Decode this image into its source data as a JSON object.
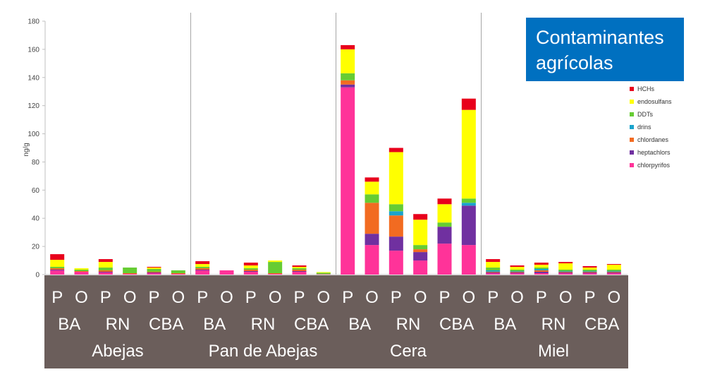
{
  "chart_data": {
    "type": "bar",
    "stacked": true,
    "title": "Contaminantes agrícolas",
    "ylabel": "ng/g",
    "ylim": [
      0,
      180
    ],
    "yticks": [
      0,
      20,
      40,
      60,
      80,
      100,
      120,
      140,
      160,
      180
    ],
    "groups": [
      {
        "name": "Abejas",
        "sites": [
          "BA",
          "RN",
          "CBA"
        ]
      },
      {
        "name": "Pan de Abejas",
        "sites": [
          "BA",
          "RN",
          "CBA"
        ]
      },
      {
        "name": "Cera",
        "sites": [
          "BA",
          "RN",
          "CBA"
        ]
      },
      {
        "name": "Miel",
        "sites": [
          "BA",
          "RN",
          "CBA"
        ]
      }
    ],
    "sublabels": [
      "P",
      "O"
    ],
    "categories": [
      "Abejas BA P",
      "Abejas BA O",
      "Abejas RN P",
      "Abejas RN O",
      "Abejas CBA P",
      "Abejas CBA O",
      "Pan de Abejas BA P",
      "Pan de Abejas BA O",
      "Pan de Abejas RN P",
      "Pan de Abejas RN O",
      "Pan de Abejas CBA P",
      "Pan de Abejas CBA O",
      "Cera BA P",
      "Cera BA O",
      "Cera RN P",
      "Cera RN O",
      "Cera CBA P",
      "Cera CBA O",
      "Miel BA P",
      "Miel BA O",
      "Miel RN P",
      "Miel RN O",
      "Miel CBA P",
      "Miel CBA O"
    ],
    "series": [
      {
        "name": "chlorpyrifos",
        "color": "#ff3399",
        "values": [
          3,
          2,
          1.5,
          0.5,
          1,
          0.5,
          3,
          3,
          2,
          0.5,
          2,
          0.3,
          133,
          21,
          17,
          10,
          22,
          21,
          1,
          1,
          1,
          1,
          1,
          1
        ]
      },
      {
        "name": "heptachlors",
        "color": "#7030a0",
        "values": [
          0.5,
          0,
          0.5,
          0,
          0.5,
          0,
          0.5,
          0,
          0.5,
          0,
          0.5,
          0,
          2,
          8,
          10,
          6,
          12,
          28,
          0.5,
          0.5,
          1,
          0.5,
          0.5,
          0.5
        ]
      },
      {
        "name": "chlordanes",
        "color": "#f26b21",
        "values": [
          1,
          0.5,
          1,
          0.5,
          0.5,
          0.5,
          1,
          0,
          1,
          0.5,
          1,
          0,
          3,
          22,
          15,
          2,
          0,
          0,
          0.5,
          0.5,
          1,
          0.5,
          0.5,
          0.5
        ]
      },
      {
        "name": "drins",
        "color": "#1aa3cc",
        "values": [
          0,
          0,
          0,
          0,
          0,
          0,
          0,
          0,
          0,
          0,
          0,
          0,
          0,
          0,
          3,
          0,
          0,
          2,
          1,
          0.5,
          1,
          0.5,
          0.5,
          0.5
        ]
      },
      {
        "name": "DDTs",
        "color": "#66cc33",
        "values": [
          1,
          1,
          2,
          4,
          2,
          2,
          1,
          0,
          1,
          8,
          1,
          1,
          5,
          6,
          5,
          3,
          3,
          3,
          2,
          1,
          1,
          1,
          1,
          1
        ]
      },
      {
        "name": "endosulfans",
        "color": "#ffff00",
        "values": [
          5,
          1,
          4,
          0,
          1,
          0,
          2,
          0,
          2,
          1,
          1,
          0.5,
          17,
          9,
          37,
          18,
          13,
          63,
          4,
          2,
          2,
          4.5,
          1.5,
          3.5
        ]
      },
      {
        "name": "HCHs",
        "color": "#e8001c",
        "values": [
          4,
          0,
          2,
          0,
          0.5,
          0,
          2,
          0,
          2,
          0,
          1,
          0,
          3,
          3,
          3,
          4,
          4,
          8,
          2,
          1,
          1.5,
          1,
          1,
          0.5
        ]
      }
    ]
  }
}
